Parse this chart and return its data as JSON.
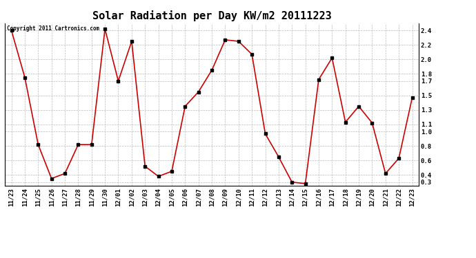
{
  "title": "Solar Radiation per Day KW/m2 20111223",
  "copyright": "Copyright 2011 Cartronics.com",
  "x_labels": [
    "11/23",
    "11/24",
    "11/25",
    "11/26",
    "11/27",
    "11/28",
    "11/29",
    "11/30",
    "12/01",
    "12/02",
    "12/03",
    "12/04",
    "12/05",
    "12/06",
    "12/07",
    "12/08",
    "12/09",
    "12/10",
    "12/11",
    "12/12",
    "12/13",
    "12/14",
    "12/15",
    "12/16",
    "12/17",
    "12/18",
    "12/19",
    "12/20",
    "12/21",
    "12/22",
    "12/23"
  ],
  "y_values": [
    2.4,
    1.75,
    0.82,
    0.35,
    0.42,
    0.82,
    0.82,
    2.42,
    1.7,
    2.25,
    0.52,
    0.38,
    0.45,
    1.35,
    1.55,
    1.85,
    2.27,
    2.25,
    2.07,
    0.97,
    0.65,
    0.3,
    0.28,
    1.72,
    2.02,
    1.13,
    1.35,
    1.12,
    0.42,
    0.63,
    1.47
  ],
  "line_color": "#cc0000",
  "marker": "s",
  "marker_color": "#000000",
  "marker_size": 2.5,
  "bg_color": "#ffffff",
  "grid_color": "#bbbbbb",
  "ylim": [
    0.25,
    2.5
  ],
  "yticks": [
    0.3,
    0.4,
    0.6,
    0.8,
    1.0,
    1.1,
    1.3,
    1.5,
    1.7,
    1.8,
    2.0,
    2.2,
    2.4
  ],
  "title_fontsize": 11,
  "tick_fontsize": 6.5,
  "copyright_fontsize": 5.5,
  "line_width": 1.2
}
